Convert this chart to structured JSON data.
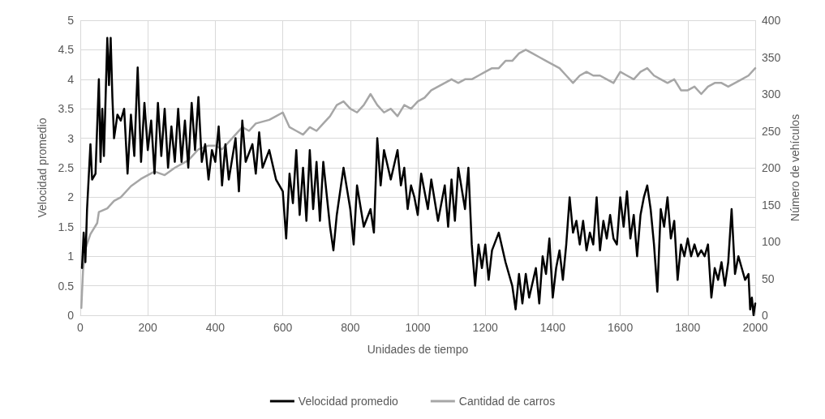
{
  "chart_data": {
    "type": "line",
    "xlabel": "Unidades de tiempo",
    "ylabel": "Velocidad promedio",
    "y2label": "Número de vehículos",
    "xlim": [
      0,
      2000
    ],
    "xticks": [
      0,
      200,
      400,
      600,
      800,
      1000,
      1200,
      1400,
      1600,
      1800,
      2000
    ],
    "ylim": [
      0,
      5
    ],
    "yticks": [
      0,
      0.5,
      1,
      1.5,
      2,
      2.5,
      3,
      3.5,
      4,
      4.5,
      5
    ],
    "y2lim": [
      0,
      400
    ],
    "y2ticks": [
      0,
      50,
      100,
      150,
      200,
      250,
      300,
      350,
      400
    ],
    "grid": true,
    "legend": "bottom",
    "marker": "none",
    "line_style": "solid",
    "series": [
      {
        "name": "Velocidad promedio",
        "color": "#000000",
        "axis": "y",
        "x": [
          5,
          10,
          15,
          20,
          30,
          35,
          45,
          55,
          60,
          65,
          70,
          80,
          85,
          90,
          95,
          100,
          110,
          120,
          130,
          140,
          150,
          160,
          170,
          180,
          190,
          200,
          210,
          220,
          230,
          240,
          250,
          260,
          270,
          280,
          290,
          300,
          310,
          320,
          330,
          340,
          350,
          360,
          370,
          380,
          390,
          400,
          410,
          420,
          430,
          440,
          460,
          470,
          480,
          490,
          510,
          520,
          530,
          540,
          560,
          580,
          600,
          610,
          620,
          630,
          640,
          650,
          660,
          670,
          680,
          690,
          700,
          710,
          720,
          740,
          750,
          760,
          780,
          800,
          810,
          820,
          840,
          860,
          870,
          880,
          890,
          900,
          920,
          940,
          950,
          960,
          970,
          980,
          990,
          1000,
          1010,
          1030,
          1040,
          1060,
          1080,
          1090,
          1100,
          1110,
          1120,
          1140,
          1150,
          1160,
          1170,
          1180,
          1190,
          1200,
          1210,
          1220,
          1240,
          1260,
          1280,
          1290,
          1300,
          1310,
          1320,
          1330,
          1350,
          1360,
          1370,
          1380,
          1390,
          1400,
          1410,
          1420,
          1430,
          1440,
          1450,
          1460,
          1470,
          1480,
          1490,
          1500,
          1510,
          1520,
          1530,
          1540,
          1550,
          1560,
          1570,
          1580,
          1590,
          1600,
          1610,
          1620,
          1630,
          1640,
          1650,
          1660,
          1670,
          1680,
          1690,
          1700,
          1710,
          1720,
          1730,
          1740,
          1750,
          1760,
          1770,
          1780,
          1790,
          1800,
          1810,
          1820,
          1830,
          1840,
          1850,
          1860,
          1870,
          1880,
          1890,
          1900,
          1910,
          1920,
          1930,
          1940,
          1950,
          1960,
          1970,
          1980,
          1985,
          1990,
          1995,
          2000
        ],
        "values": [
          0.8,
          1.4,
          0.9,
          1.8,
          2.9,
          2.3,
          2.4,
          4.0,
          2.6,
          3.5,
          2.7,
          4.7,
          3.9,
          4.7,
          3.7,
          3.0,
          3.4,
          3.3,
          3.5,
          2.4,
          3.4,
          2.7,
          4.2,
          2.6,
          3.6,
          2.8,
          3.3,
          2.4,
          3.6,
          2.7,
          3.5,
          2.5,
          3.2,
          2.6,
          3.5,
          2.6,
          3.3,
          2.5,
          3.6,
          2.8,
          3.7,
          2.6,
          2.9,
          2.3,
          2.8,
          2.6,
          3.2,
          2.2,
          2.9,
          2.3,
          3.0,
          2.1,
          3.3,
          2.6,
          2.9,
          2.4,
          3.1,
          2.5,
          2.8,
          2.3,
          2.1,
          1.3,
          2.4,
          1.9,
          2.8,
          1.7,
          2.5,
          1.6,
          2.8,
          1.8,
          2.6,
          1.6,
          2.6,
          1.5,
          1.1,
          1.7,
          2.5,
          1.8,
          1.2,
          2.2,
          1.5,
          1.8,
          1.4,
          3.0,
          2.2,
          2.8,
          2.3,
          2.8,
          2.2,
          2.5,
          1.8,
          2.2,
          2.0,
          1.7,
          2.4,
          1.8,
          2.3,
          1.6,
          2.2,
          1.5,
          2.3,
          1.6,
          2.5,
          1.8,
          2.5,
          1.2,
          0.5,
          1.2,
          0.8,
          1.2,
          0.6,
          1.1,
          1.4,
          0.9,
          0.5,
          0.1,
          0.7,
          0.2,
          0.7,
          0.3,
          0.8,
          0.2,
          1.0,
          0.7,
          1.3,
          0.3,
          0.8,
          1.1,
          0.6,
          1.2,
          2.0,
          1.4,
          1.6,
          1.2,
          1.6,
          1.1,
          1.4,
          1.2,
          2.0,
          1.1,
          1.6,
          1.3,
          1.7,
          1.3,
          1.2,
          2.0,
          1.5,
          2.1,
          1.3,
          1.7,
          1.0,
          1.7,
          2.0,
          2.2,
          1.8,
          1.2,
          0.4,
          1.8,
          1.5,
          2.0,
          1.3,
          1.6,
          0.6,
          1.2,
          1.0,
          1.3,
          1.0,
          1.2,
          1.0,
          1.1,
          1.0,
          1.2,
          0.3,
          0.8,
          0.6,
          0.9,
          0.5,
          0.9,
          1.8,
          0.7,
          1.0,
          0.8,
          0.6,
          0.7,
          0.1,
          0.3,
          0.0,
          0.2
        ]
      },
      {
        "name": "Cantidad de carros",
        "color": "#a6a6a6",
        "axis": "y2",
        "x": [
          3,
          8,
          15,
          30,
          50,
          55,
          80,
          100,
          120,
          150,
          180,
          200,
          220,
          250,
          280,
          300,
          320,
          350,
          380,
          400,
          420,
          450,
          480,
          500,
          520,
          560,
          580,
          600,
          620,
          640,
          660,
          680,
          700,
          720,
          740,
          760,
          780,
          800,
          820,
          840,
          860,
          880,
          900,
          920,
          940,
          960,
          980,
          1000,
          1020,
          1040,
          1060,
          1080,
          1100,
          1120,
          1140,
          1160,
          1180,
          1200,
          1220,
          1240,
          1260,
          1280,
          1300,
          1320,
          1340,
          1360,
          1380,
          1400,
          1420,
          1440,
          1460,
          1480,
          1500,
          1520,
          1540,
          1560,
          1580,
          1600,
          1620,
          1640,
          1660,
          1680,
          1700,
          1720,
          1740,
          1760,
          1780,
          1800,
          1820,
          1840,
          1860,
          1880,
          1900,
          1920,
          1940,
          1960,
          1980,
          2000
        ],
        "values": [
          10,
          60,
          90,
          110,
          125,
          140,
          145,
          155,
          160,
          175,
          185,
          190,
          195,
          190,
          200,
          205,
          210,
          225,
          230,
          230,
          225,
          240,
          255,
          250,
          260,
          265,
          270,
          275,
          255,
          250,
          245,
          255,
          250,
          260,
          270,
          285,
          290,
          280,
          275,
          285,
          300,
          285,
          275,
          280,
          270,
          285,
          280,
          290,
          295,
          305,
          310,
          315,
          320,
          315,
          320,
          320,
          325,
          330,
          335,
          335,
          345,
          345,
          355,
          360,
          355,
          350,
          345,
          340,
          335,
          325,
          315,
          325,
          330,
          325,
          325,
          320,
          315,
          330,
          325,
          320,
          330,
          335,
          325,
          320,
          315,
          320,
          305,
          305,
          310,
          300,
          310,
          315,
          315,
          310,
          315,
          320,
          325,
          335
        ]
      }
    ]
  }
}
